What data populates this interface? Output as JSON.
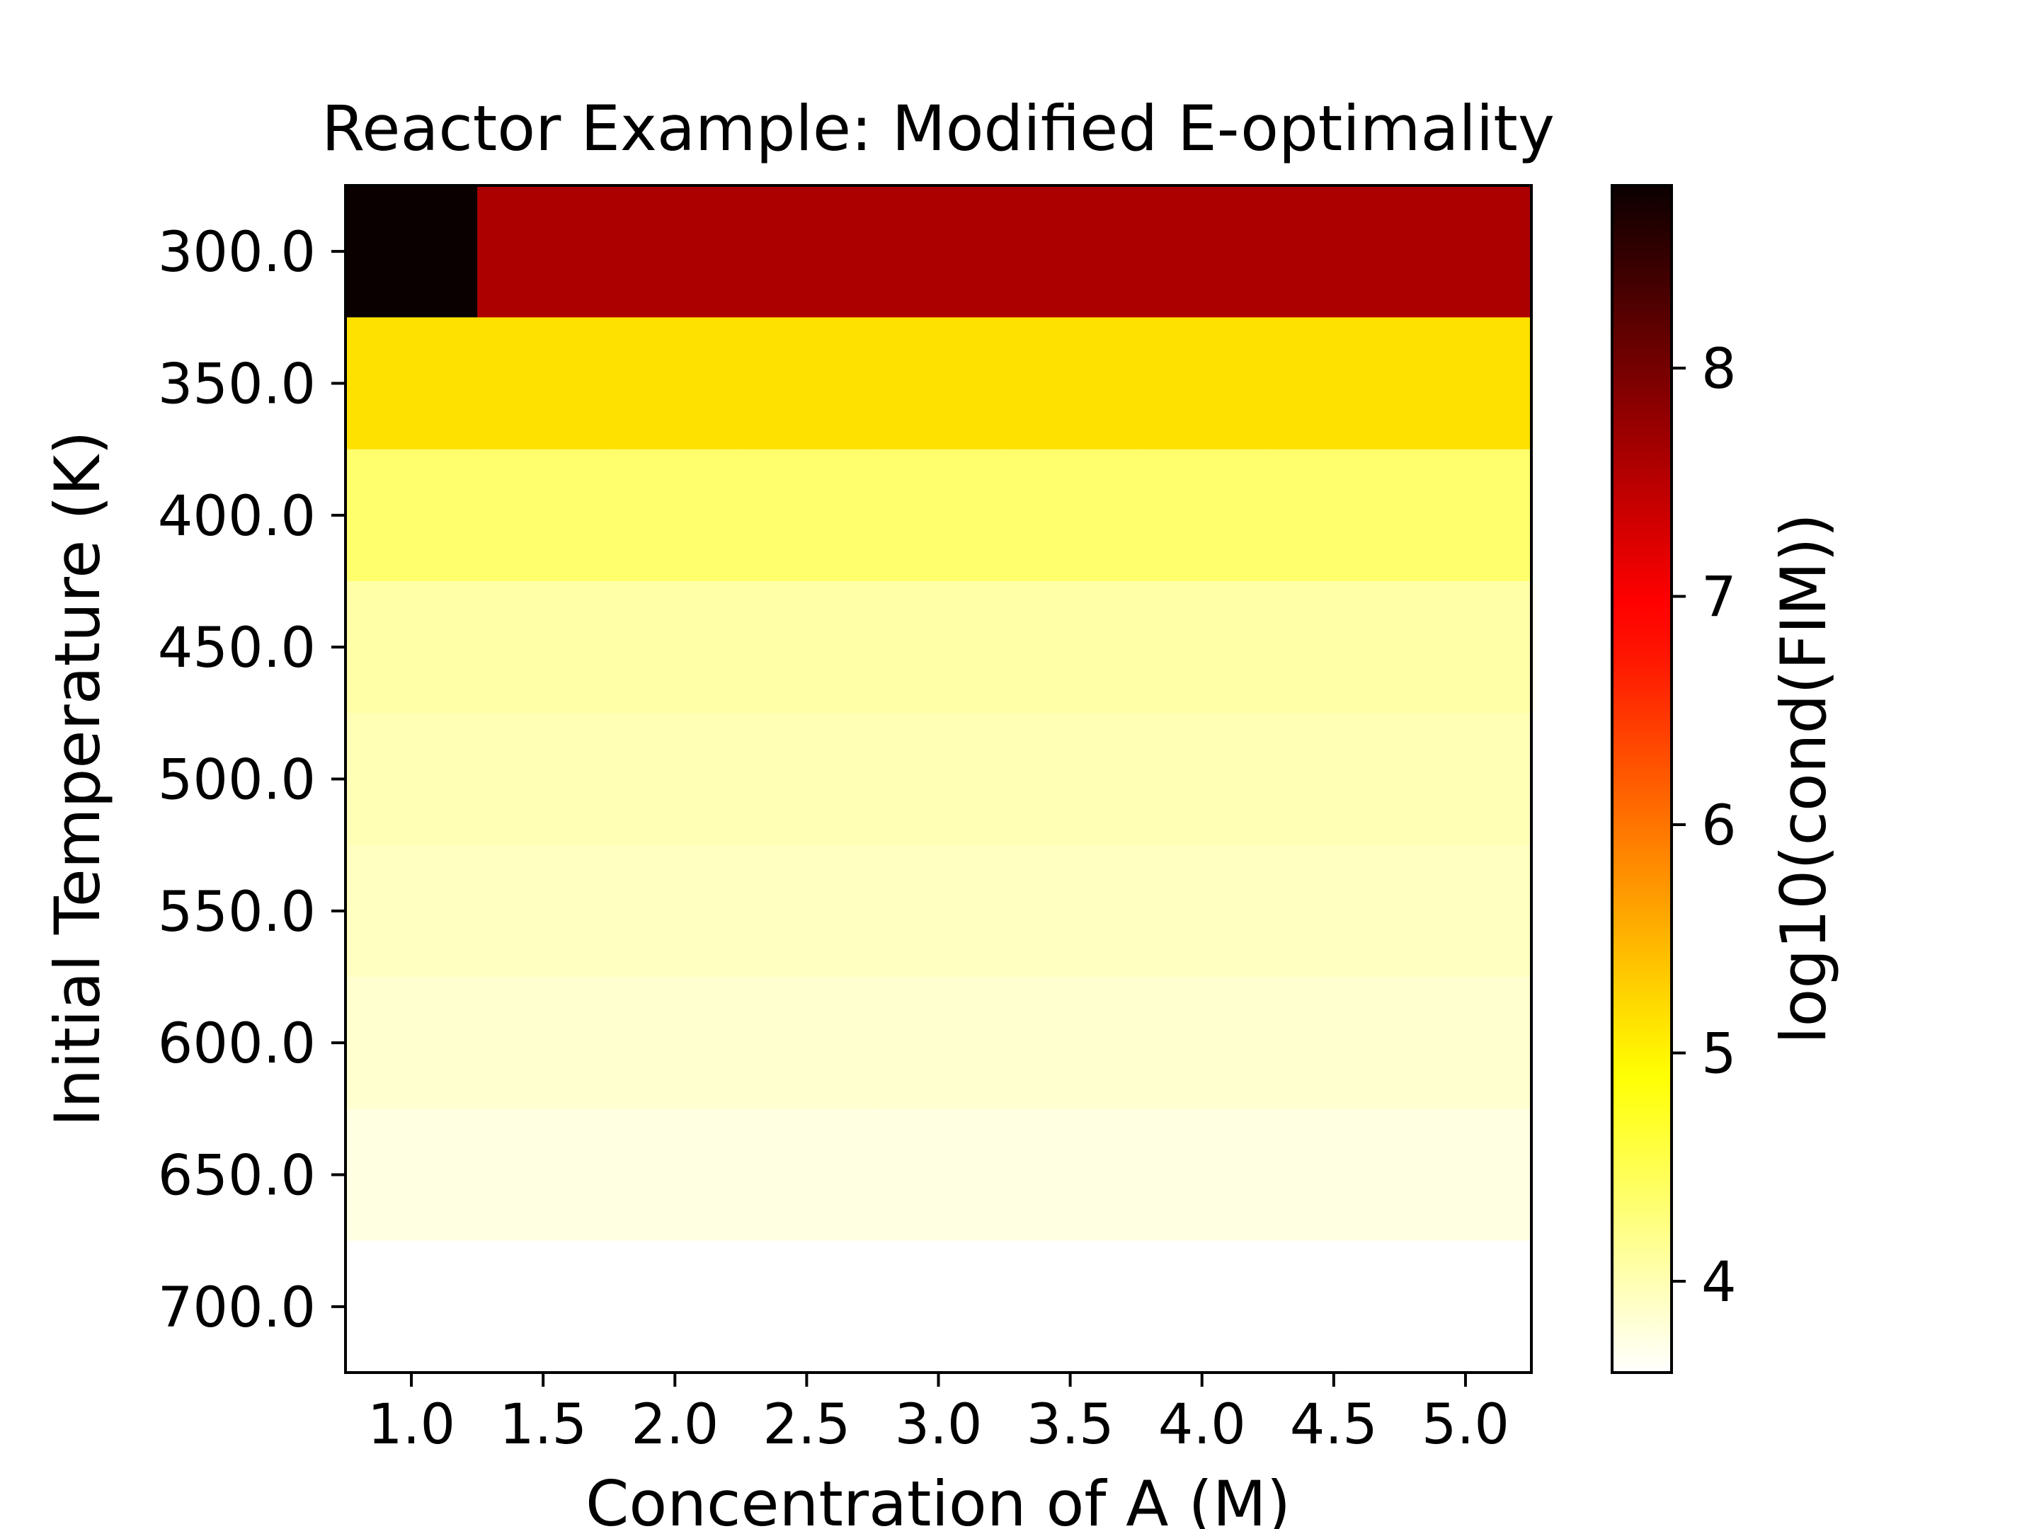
{
  "chart_data": {
    "type": "heatmap",
    "title": "Reactor Example: Modified E-optimality",
    "xlabel": "Concentration of A (M)",
    "ylabel": "Initial Temperature (K)",
    "colorbar_label": "log10(cond(FIM))",
    "colormap": "hot_r",
    "x": [
      1.0,
      1.5,
      2.0,
      2.5,
      3.0,
      3.5,
      4.0,
      4.5,
      5.0
    ],
    "y": [
      300.0,
      350.0,
      400.0,
      450.0,
      500.0,
      550.0,
      600.0,
      650.0,
      700.0
    ],
    "x_tick_labels": [
      "1.0",
      "1.5",
      "2.0",
      "2.5",
      "3.0",
      "3.5",
      "4.0",
      "4.5",
      "5.0"
    ],
    "y_tick_labels": [
      "300.0",
      "350.0",
      "400.0",
      "450.0",
      "500.0",
      "550.0",
      "600.0",
      "650.0",
      "700.0"
    ],
    "colorbar_ticks": [
      4,
      5,
      6,
      7,
      8
    ],
    "colorbar_tick_labels": [
      "4",
      "5",
      "6",
      "7",
      "8"
    ],
    "vmin": 3.6,
    "vmax": 8.8,
    "values": [
      [
        8.8,
        7.6,
        7.6,
        7.6,
        7.6,
        7.6,
        7.6,
        7.6,
        7.6
      ],
      [
        5.15,
        5.15,
        5.15,
        5.15,
        5.15,
        5.15,
        5.15,
        5.15,
        5.15
      ],
      [
        4.35,
        4.35,
        4.35,
        4.35,
        4.35,
        4.35,
        4.35,
        4.35,
        4.35
      ],
      [
        4.05,
        4.05,
        4.05,
        4.05,
        4.05,
        4.05,
        4.05,
        4.05,
        4.05
      ],
      [
        3.98,
        3.98,
        3.98,
        3.98,
        3.98,
        3.98,
        3.98,
        3.98,
        3.98
      ],
      [
        3.92,
        3.92,
        3.92,
        3.92,
        3.92,
        3.92,
        3.92,
        3.92,
        3.92
      ],
      [
        3.85,
        3.85,
        3.85,
        3.85,
        3.85,
        3.85,
        3.85,
        3.85,
        3.85
      ],
      [
        3.75,
        3.75,
        3.75,
        3.75,
        3.75,
        3.75,
        3.75,
        3.75,
        3.75
      ],
      [
        3.6,
        3.6,
        3.6,
        3.6,
        3.6,
        3.6,
        3.6,
        3.6,
        3.6
      ]
    ]
  }
}
